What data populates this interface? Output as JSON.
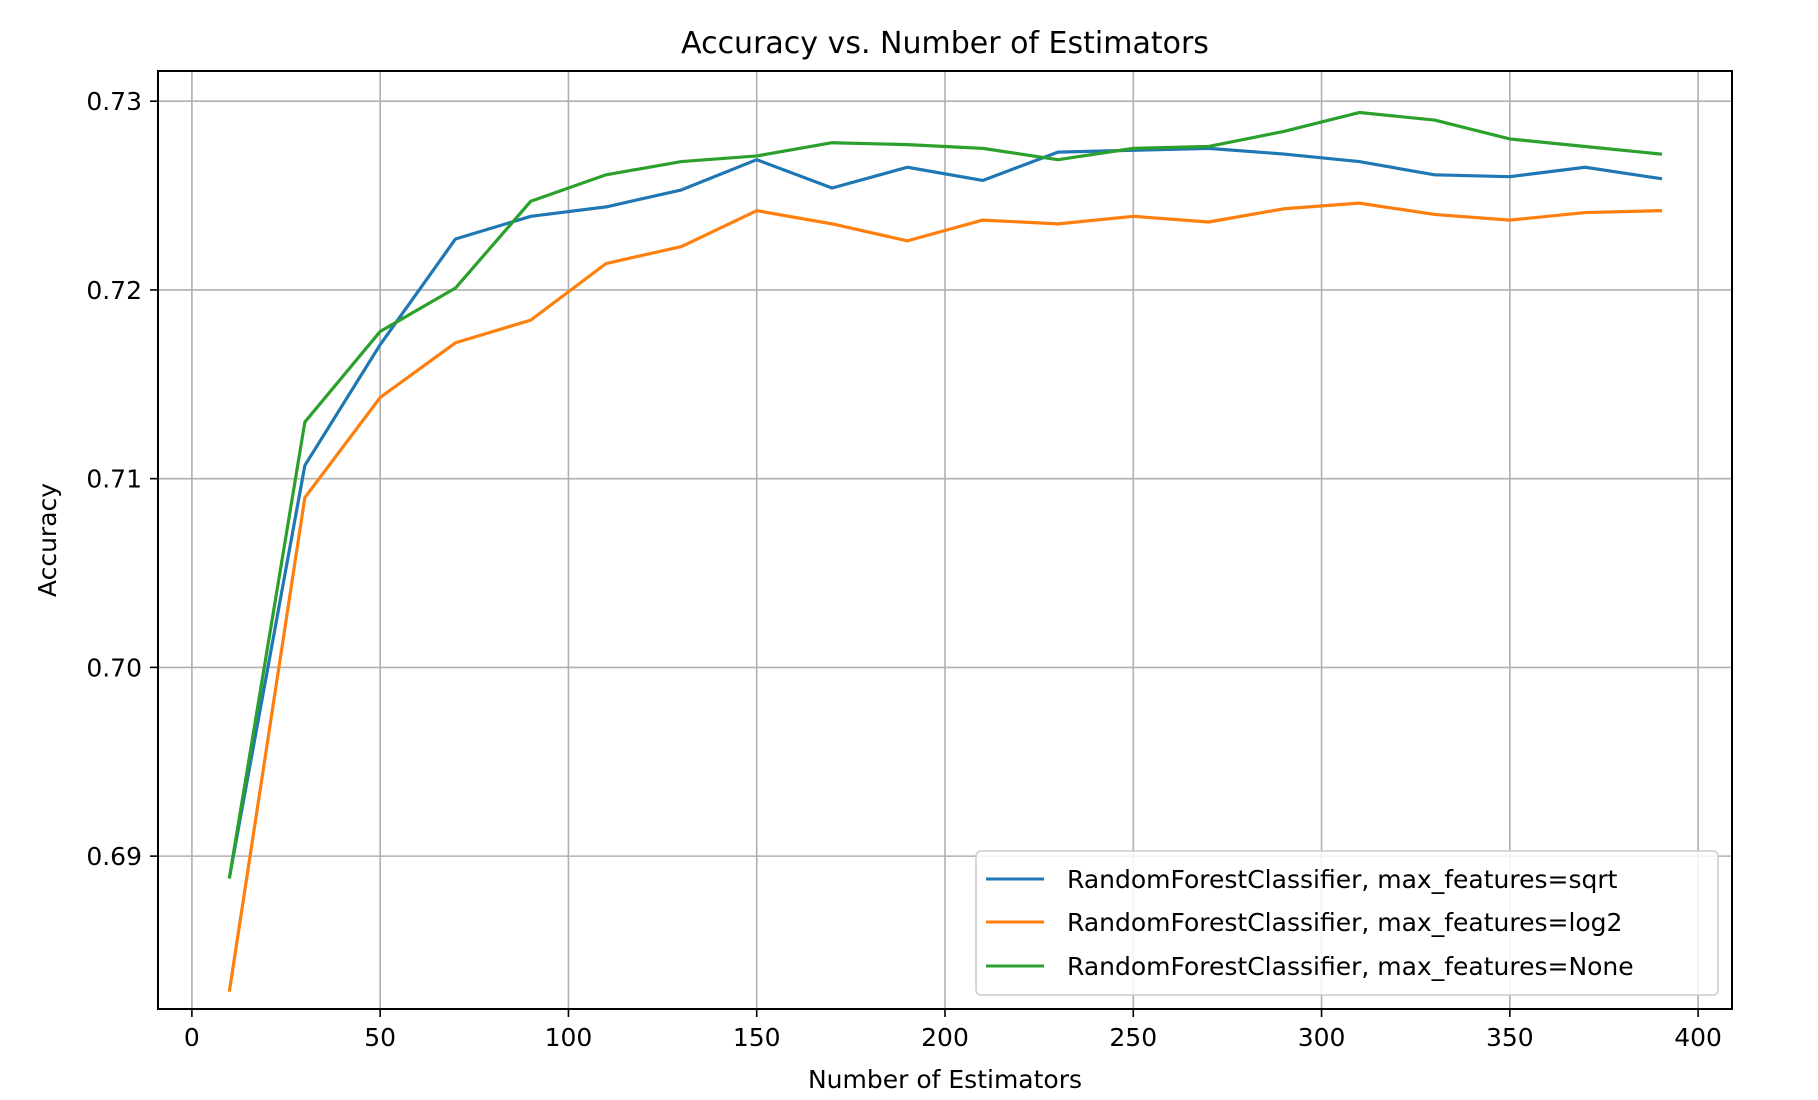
{
  "chart_data": {
    "type": "line",
    "title": "Accuracy vs. Number of Estimators",
    "xlabel": "Number of Estimators",
    "ylabel": "Accuracy",
    "xlim": [
      -9,
      409
    ],
    "ylim": [
      0.6819,
      0.7316
    ],
    "xticks": [
      0,
      50,
      100,
      150,
      200,
      250,
      300,
      350,
      400
    ],
    "xtick_labels": [
      "0",
      "50",
      "100",
      "150",
      "200",
      "250",
      "300",
      "350",
      "400"
    ],
    "yticks": [
      0.69,
      0.7,
      0.71,
      0.72,
      0.73
    ],
    "ytick_labels": [
      "0.69",
      "0.70",
      "0.71",
      "0.72",
      "0.73"
    ],
    "grid": true,
    "legend_position": "lower-right",
    "x": [
      10,
      30,
      50,
      70,
      90,
      110,
      130,
      150,
      170,
      190,
      210,
      230,
      250,
      270,
      290,
      310,
      330,
      350,
      370,
      390
    ],
    "series": [
      {
        "name": "RandomForestClassifier, max_features=sqrt",
        "color": "#1f77b4",
        "values": [
          0.6889,
          0.7107,
          0.7171,
          0.7227,
          0.7239,
          0.7244,
          0.7253,
          0.7269,
          0.7254,
          0.7265,
          0.7258,
          0.7273,
          0.7274,
          0.7275,
          0.7272,
          0.7268,
          0.7261,
          0.726,
          0.7265,
          0.7259
        ]
      },
      {
        "name": "RandomForestClassifier, max_features=log2",
        "color": "#ff7f0e",
        "values": [
          0.6829,
          0.709,
          0.7143,
          0.7172,
          0.7184,
          0.7214,
          0.7223,
          0.7242,
          0.7235,
          0.7226,
          0.7237,
          0.7235,
          0.7239,
          0.7236,
          0.7243,
          0.7246,
          0.724,
          0.7237,
          0.7241,
          0.7242
        ]
      },
      {
        "name": "RandomForestClassifier, max_features=None",
        "color": "#2ca02c",
        "values": [
          0.6889,
          0.713,
          0.7178,
          0.7201,
          0.7247,
          0.7261,
          0.7268,
          0.7271,
          0.7278,
          0.7277,
          0.7275,
          0.7269,
          0.7275,
          0.7276,
          0.7284,
          0.7294,
          0.729,
          0.728,
          0.7276,
          0.7272
        ]
      }
    ]
  }
}
